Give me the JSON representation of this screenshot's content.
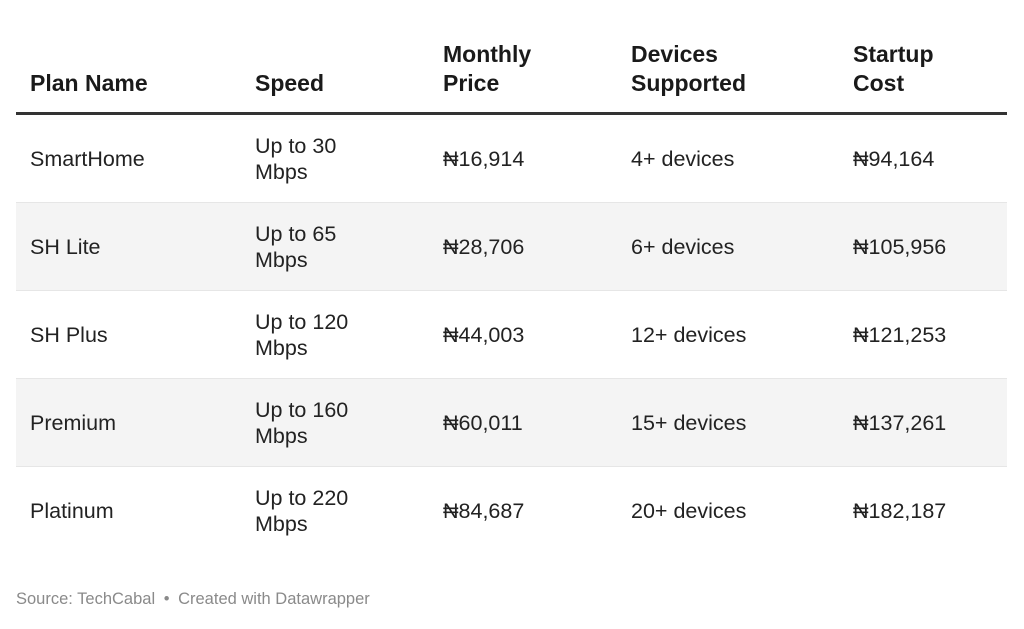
{
  "table": {
    "headers": [
      "Plan Name",
      "Speed",
      "Monthly\nPrice",
      "Devices\nSupported",
      "Startup\nCost"
    ],
    "header_lines": [
      [
        "Plan Name"
      ],
      [
        "Speed"
      ],
      [
        "Monthly",
        "Price"
      ],
      [
        "Devices",
        "Supported"
      ],
      [
        "Startup",
        "Cost"
      ]
    ],
    "rows": [
      {
        "plan": "SmartHome",
        "speed": [
          "Up to 30",
          "Mbps"
        ],
        "price": "₦16,914",
        "devices": "4+ devices",
        "startup": "₦94,164"
      },
      {
        "plan": "SH Lite",
        "speed": [
          "Up to 65",
          "Mbps"
        ],
        "price": "₦28,706",
        "devices": "6+ devices",
        "startup": "₦105,956"
      },
      {
        "plan": "SH Plus",
        "speed": [
          "Up to 120",
          "Mbps"
        ],
        "price": "₦44,003",
        "devices": "12+ devices",
        "startup": "₦121,253"
      },
      {
        "plan": "Premium",
        "speed": [
          "Up to 160",
          "Mbps"
        ],
        "price": "₦60,011",
        "devices": "15+ devices",
        "startup": "₦137,261"
      },
      {
        "plan": "Platinum",
        "speed": [
          "Up to 220",
          "Mbps"
        ],
        "price": "₦84,687",
        "devices": "20+ devices",
        "startup": "₦182,187"
      }
    ]
  },
  "footer": {
    "source": "Source: TechCabal",
    "separator": "•",
    "credit": "Created with Datawrapper"
  },
  "colors": {
    "header_rule": "#333333",
    "stripe": "#f4f4f4",
    "footer_text": "#8a8a8a"
  }
}
